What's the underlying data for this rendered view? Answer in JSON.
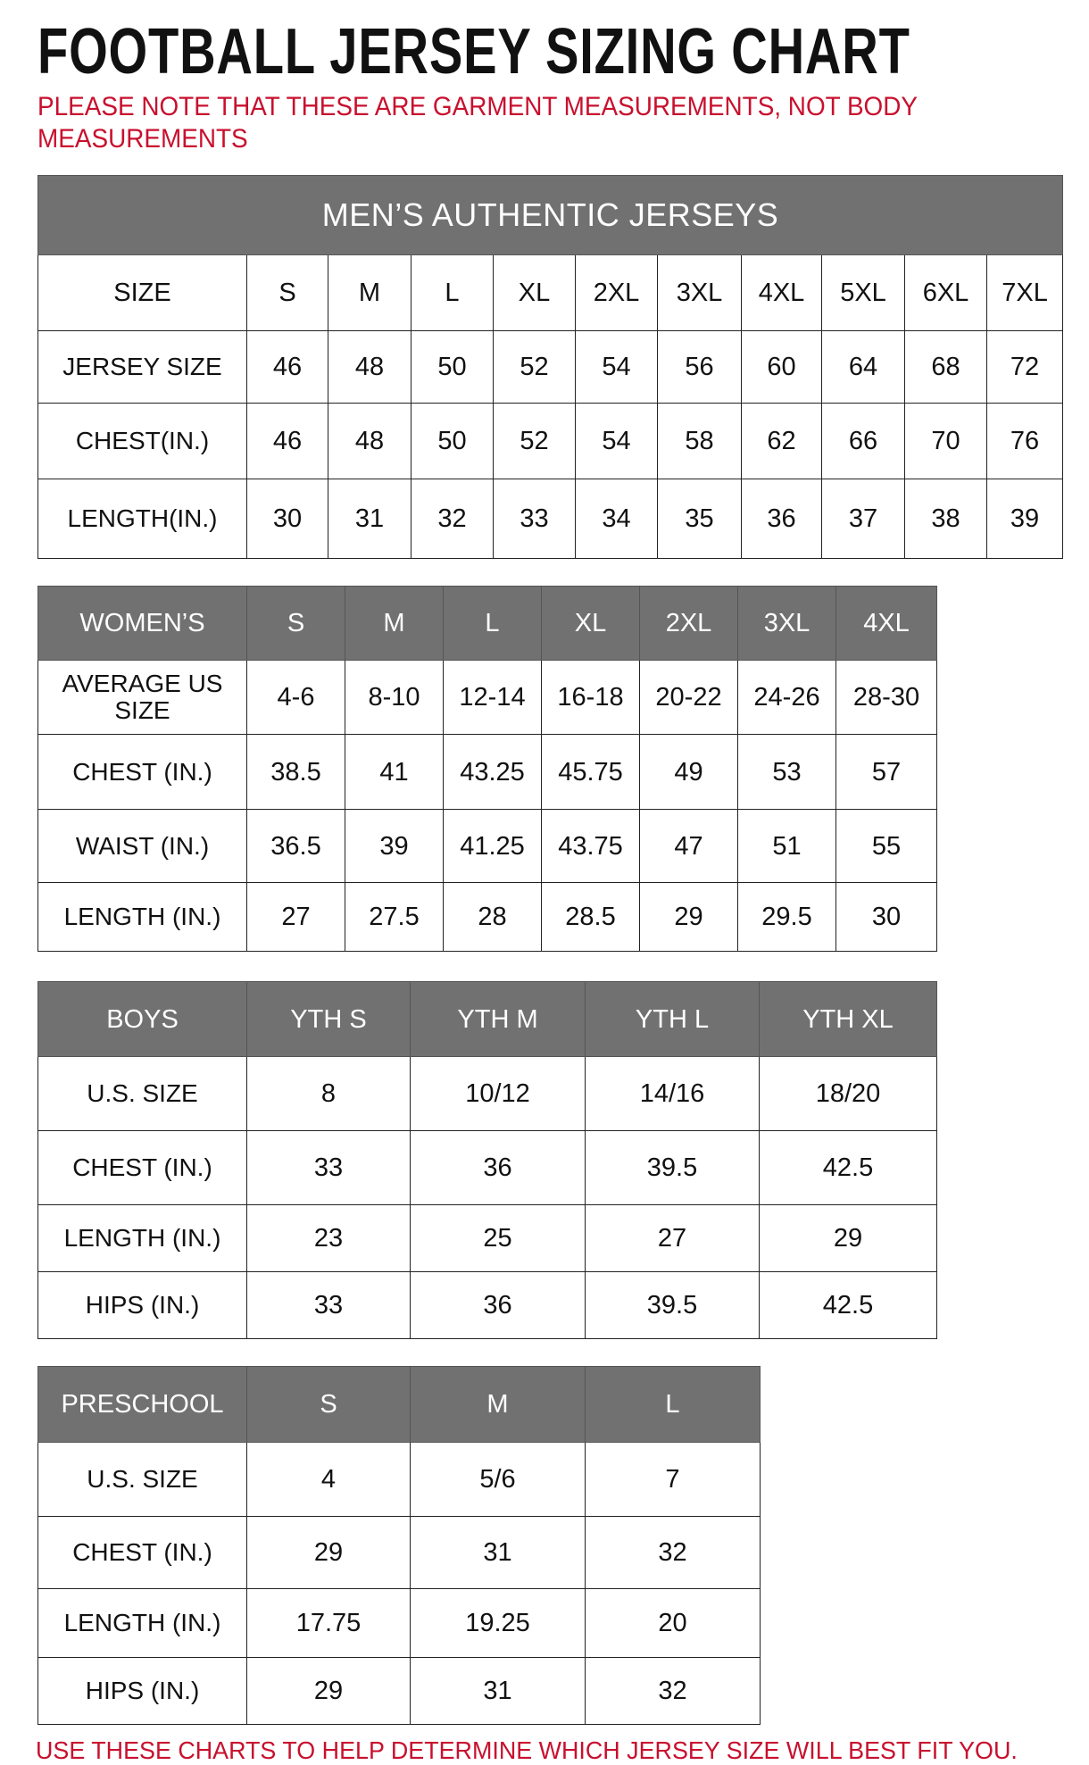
{
  "title": "FOOTBALL JERSEY SIZING CHART",
  "note": "PLEASE NOTE THAT THESE ARE GARMENT MEASUREMENTS, NOT BODY MEASUREMENTS",
  "footer": "USE THESE CHARTS TO HELP DETERMINE WHICH JERSEY SIZE WILL BEST FIT YOU.",
  "colors": {
    "header_bg": "#717171",
    "note_red": "#c8102e"
  },
  "tables": [
    {
      "id": "mens",
      "band": "MEN’S AUTHENTIC JERSEYS",
      "header": [
        "SIZE",
        "S",
        "M",
        "L",
        "XL",
        "2XL",
        "3XL",
        "4XL",
        "5XL",
        "6XL",
        "7XL"
      ],
      "header_style": "plain",
      "rows": [
        [
          "JERSEY SIZE",
          "46",
          "48",
          "50",
          "52",
          "54",
          "56",
          "60",
          "64",
          "68",
          "72"
        ],
        [
          "CHEST(IN.)",
          "46",
          "48",
          "50",
          "52",
          "54",
          "58",
          "62",
          "66",
          "70",
          "76"
        ],
        [
          "LENGTH(IN.)",
          "30",
          "31",
          "32",
          "33",
          "34",
          "35",
          "36",
          "37",
          "38",
          "39"
        ]
      ]
    },
    {
      "id": "womens",
      "header": [
        "WOMEN’S",
        "S",
        "M",
        "L",
        "XL",
        "2XL",
        "3XL",
        "4XL"
      ],
      "header_style": "gray",
      "rows": [
        [
          "AVERAGE US SIZE",
          "4-6",
          "8-10",
          "12-14",
          "16-18",
          "20-22",
          "24-26",
          "28-30"
        ],
        [
          "CHEST (IN.)",
          "38.5",
          "41",
          "43.25",
          "45.75",
          "49",
          "53",
          "57"
        ],
        [
          "WAIST (IN.)",
          "36.5",
          "39",
          "41.25",
          "43.75",
          "47",
          "51",
          "55"
        ],
        [
          "LENGTH (IN.)",
          "27",
          "27.5",
          "28",
          "28.5",
          "29",
          "29.5",
          "30"
        ]
      ]
    },
    {
      "id": "boys",
      "header": [
        "BOYS",
        "YTH S",
        "YTH M",
        "YTH L",
        "YTH XL"
      ],
      "header_style": "gray",
      "rows": [
        [
          "U.S. SIZE",
          "8",
          "10/12",
          "14/16",
          "18/20"
        ],
        [
          "CHEST (IN.)",
          "33",
          "36",
          "39.5",
          "42.5"
        ],
        [
          "LENGTH (IN.)",
          "23",
          "25",
          "27",
          "29"
        ],
        [
          "HIPS (IN.)",
          "33",
          "36",
          "39.5",
          "42.5"
        ]
      ]
    },
    {
      "id": "preschool",
      "header": [
        "PRESCHOOL",
        "S",
        "M",
        "L"
      ],
      "header_style": "gray",
      "rows": [
        [
          "U.S. SIZE",
          "4",
          "5/6",
          "7"
        ],
        [
          "CHEST (IN.)",
          "29",
          "31",
          "32"
        ],
        [
          "LENGTH (IN.)",
          "17.75",
          "19.25",
          "20"
        ],
        [
          "HIPS (IN.)",
          "29",
          "31",
          "32"
        ]
      ]
    }
  ]
}
